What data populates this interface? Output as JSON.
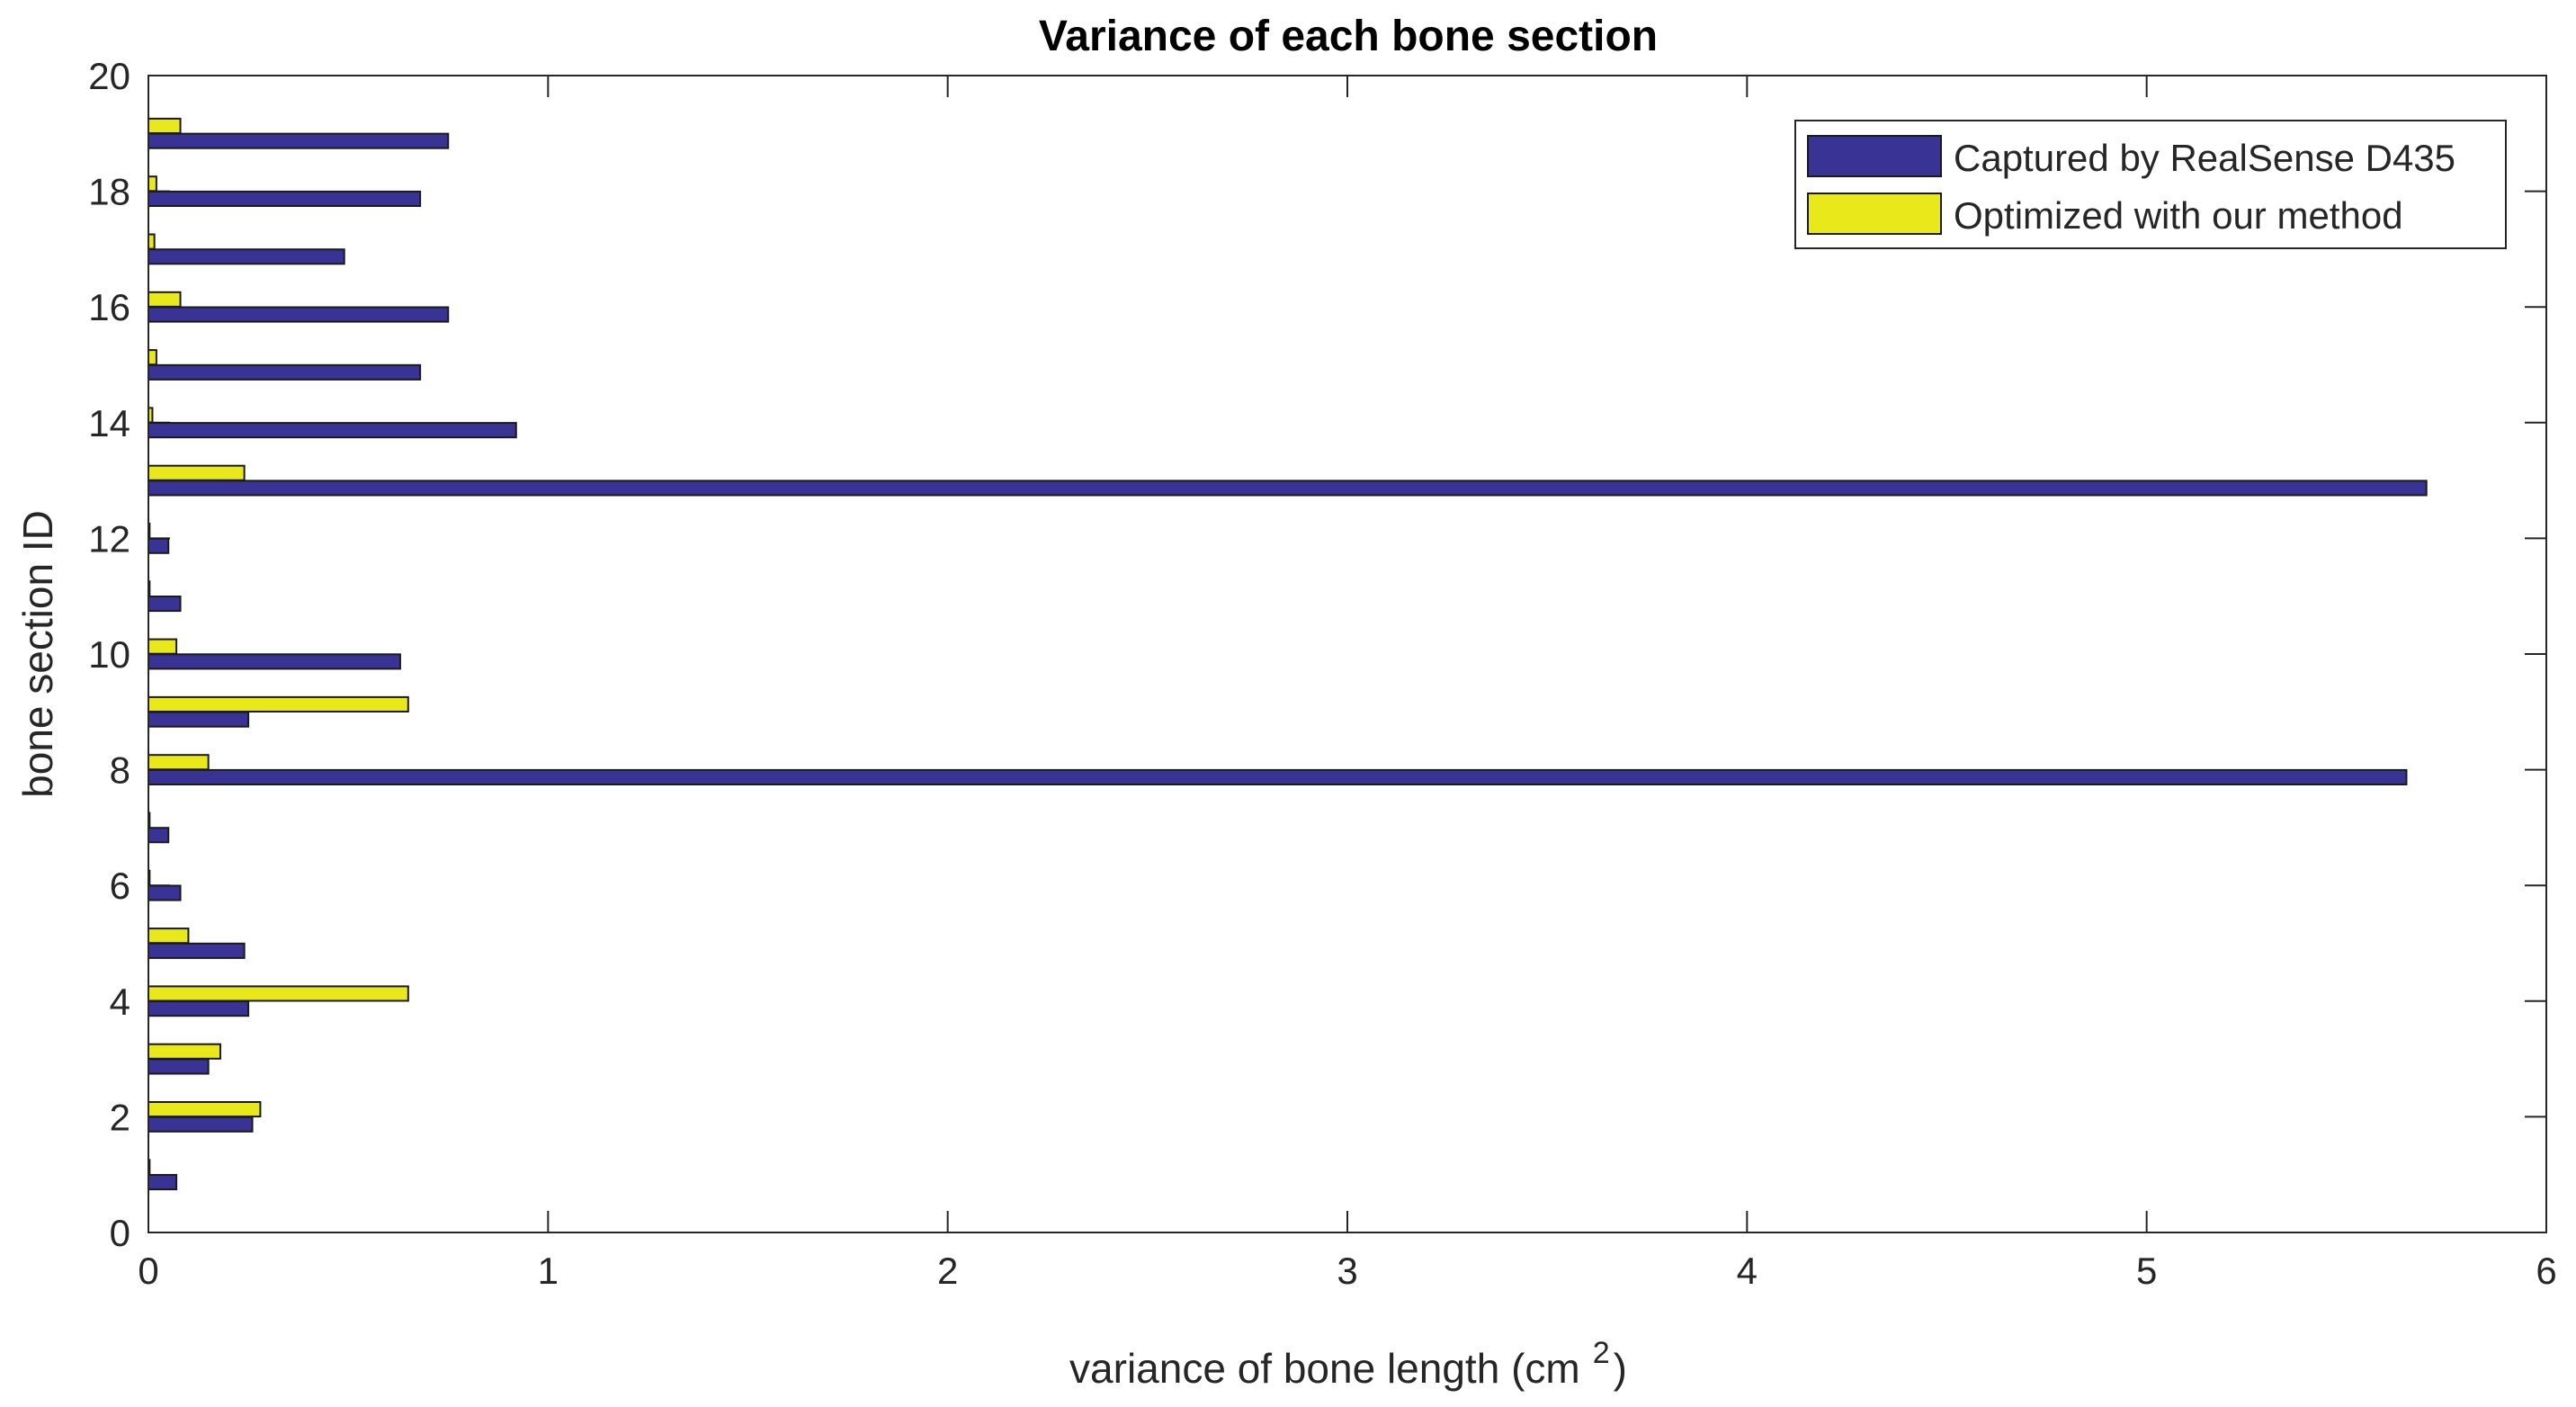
{
  "chart_data": {
    "type": "bar",
    "orientation": "horizontal",
    "title": "Variance of each bone section",
    "xlabel": "variance of bone length (cm",
    "xlabel_superscript": "2",
    "xlabel_suffix": ")",
    "ylabel": "bone section ID",
    "xlim": [
      0,
      6
    ],
    "ylim": [
      0,
      20
    ],
    "xticks": [
      "0",
      "1",
      "2",
      "3",
      "4",
      "5",
      "6"
    ],
    "yticks": [
      "0",
      "2",
      "4",
      "6",
      "8",
      "10",
      "12",
      "14",
      "16",
      "18",
      "20"
    ],
    "legend_position": "top-right",
    "categories": [
      1,
      2,
      3,
      4,
      5,
      6,
      7,
      8,
      9,
      10,
      11,
      12,
      13,
      14,
      15,
      16,
      17,
      18,
      19
    ],
    "series": [
      {
        "name": "Captured by RealSense D435",
        "color": "#3a3396",
        "values": [
          0.07,
          0.26,
          0.15,
          0.25,
          0.24,
          0.08,
          0.05,
          5.65,
          0.25,
          0.63,
          0.08,
          0.05,
          5.7,
          0.92,
          0.68,
          0.75,
          0.49,
          0.68,
          0.75
        ]
      },
      {
        "name": "Optimized with our method",
        "color": "#e8e81a",
        "values": [
          0.003,
          0.28,
          0.18,
          0.65,
          0.1,
          0.003,
          0.003,
          0.15,
          0.65,
          0.07,
          0.003,
          0.003,
          0.24,
          0.01,
          0.02,
          0.08,
          0.015,
          0.02,
          0.08
        ]
      }
    ]
  }
}
